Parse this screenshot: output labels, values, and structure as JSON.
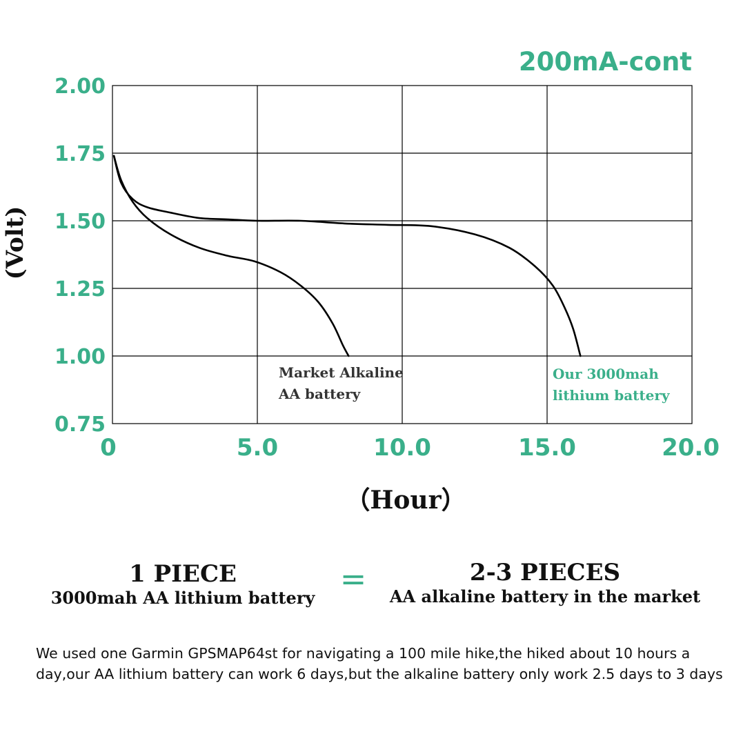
{
  "colors": {
    "accent": "#3aaf8a",
    "text": "#111111",
    "grid": "#000000"
  },
  "chart_data": {
    "type": "line",
    "title": "200mA-cont",
    "xlabel": "（Hour）",
    "ylabel": "(Volt)",
    "xlim": [
      0,
      20
    ],
    "ylim": [
      0.75,
      2.0
    ],
    "x_ticks": [
      0,
      5,
      10,
      15,
      20
    ],
    "x_tick_labels": [
      "0",
      "5.0",
      "10.0",
      "15.0",
      "20.0"
    ],
    "y_ticks": [
      0.75,
      1.0,
      1.25,
      1.5,
      1.75,
      2.0
    ],
    "y_tick_labels": [
      "0.75",
      "1.00",
      "1.25",
      "1.50",
      "1.75",
      "2.00"
    ],
    "grid": true,
    "series": [
      {
        "name": "Market Alkaline AA battery",
        "label_lines": [
          "Market Alkaline",
          "AA battery"
        ],
        "label_color": "#333333",
        "x": [
          0.05,
          0.3,
          0.7,
          1.2,
          2.0,
          3.0,
          4.0,
          4.9,
          5.8,
          6.5,
          7.1,
          7.6,
          7.95,
          8.15
        ],
        "y": [
          1.74,
          1.65,
          1.57,
          1.51,
          1.45,
          1.4,
          1.37,
          1.35,
          1.31,
          1.26,
          1.2,
          1.12,
          1.04,
          1.0
        ]
      },
      {
        "name": "Our 3000mah lithium battery",
        "label_lines": [
          "Our 3000mah",
          "lithium battery"
        ],
        "label_color": "#3aaf8a",
        "x": [
          0.05,
          0.3,
          0.7,
          1.2,
          2.0,
          3.0,
          4.0,
          5.0,
          6.5,
          8.0,
          9.5,
          11.0,
          12.5,
          13.7,
          14.6,
          15.2,
          15.6,
          15.9,
          16.15
        ],
        "y": [
          1.74,
          1.64,
          1.58,
          1.55,
          1.53,
          1.51,
          1.505,
          1.5,
          1.5,
          1.49,
          1.485,
          1.48,
          1.45,
          1.4,
          1.33,
          1.26,
          1.18,
          1.1,
          1.0
        ]
      }
    ]
  },
  "comparison": {
    "left_big": "1 PIECE",
    "left_small": "3000mah AA lithium battery",
    "equals": "=",
    "right_big": "2-3 PIECES",
    "right_small": "AA alkaline battery in the market"
  },
  "note": "We used one Garmin GPSMAP64st for navigating a 100 mile hike,the hiked about 10 hours a day,our AA lithium battery can work 6 days,but the alkaline battery only work 2.5 days to 3 days"
}
